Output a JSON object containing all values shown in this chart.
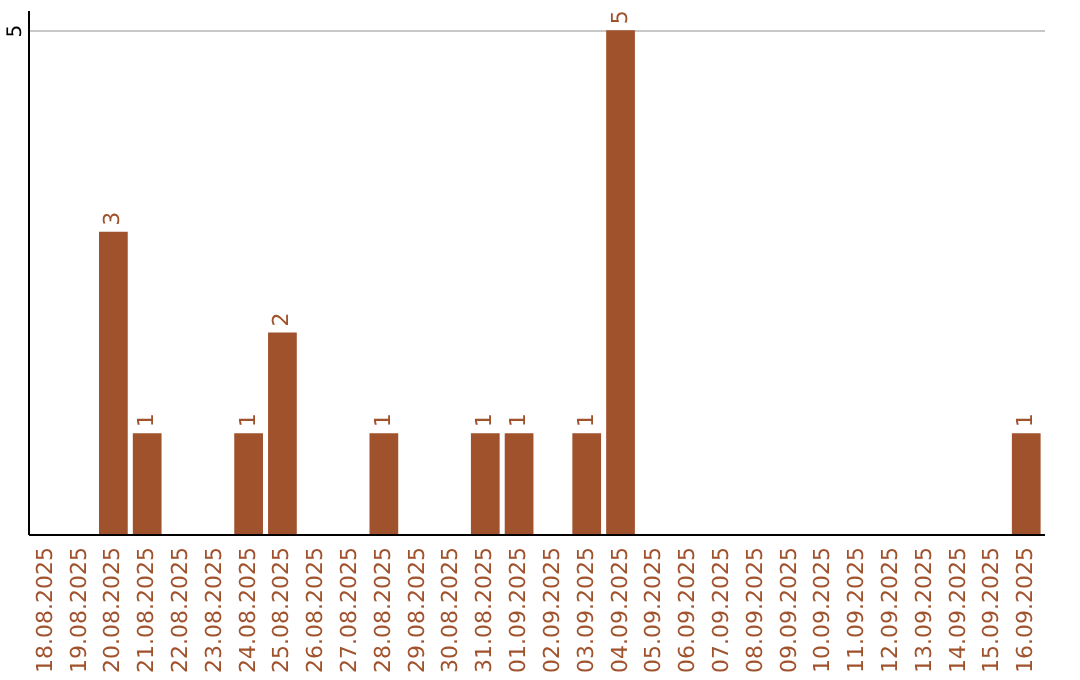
{
  "chart_data": {
    "type": "bar",
    "categories": [
      "18.08.2025",
      "19.08.2025",
      "20.08.2025",
      "21.08.2025",
      "22.08.2025",
      "23.08.2025",
      "24.08.2025",
      "25.08.2025",
      "26.08.2025",
      "27.08.2025",
      "28.08.2025",
      "29.08.2025",
      "30.08.2025",
      "31.08.2025",
      "01.09.2025",
      "02.09.2025",
      "03.09.2025",
      "04.09.2025",
      "05.09.2025",
      "06.09.2025",
      "07.09.2025",
      "08.09.2025",
      "09.09.2025",
      "10.09.2025",
      "11.09.2025",
      "12.09.2025",
      "13.09.2025",
      "14.09.2025",
      "15.09.2025",
      "16.09.2025"
    ],
    "values": [
      0,
      0,
      3,
      1,
      0,
      0,
      1,
      2,
      0,
      0,
      1,
      0,
      0,
      1,
      1,
      0,
      1,
      5,
      0,
      0,
      0,
      0,
      0,
      0,
      0,
      0,
      0,
      0,
      0,
      1
    ],
    "value_labels": [
      null,
      null,
      "3",
      "1",
      null,
      null,
      "1",
      "2",
      null,
      null,
      "1",
      null,
      null,
      "1",
      "1",
      null,
      "1",
      "5",
      null,
      null,
      null,
      null,
      null,
      null,
      null,
      null,
      null,
      null,
      null,
      "1"
    ],
    "color": "#a0522d",
    "ylim": [
      0,
      5.2
    ],
    "yticks": [
      5
    ],
    "grid": "y"
  }
}
